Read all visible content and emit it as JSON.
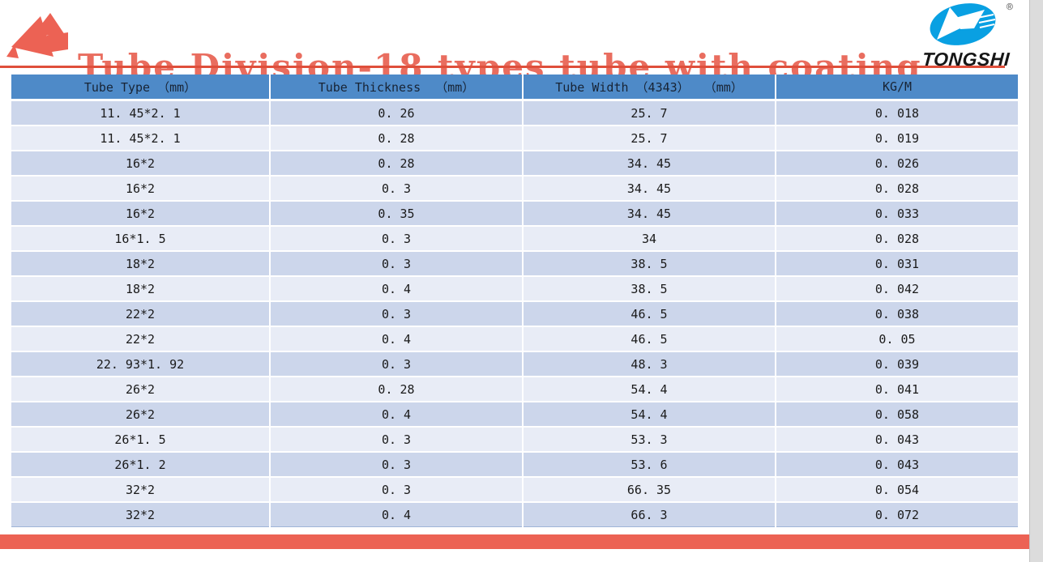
{
  "theme": {
    "accent": "#EC6254",
    "title_color": "#E96D5F",
    "underline_color": "#DF4F3B",
    "header_bg": "#4E8AC8",
    "header_text": "#182435",
    "row_dark": "#CCD6EB",
    "row_light": "#E8ECF6",
    "cell_text": "#1A1A1A",
    "logo_blue": "#09A0E2",
    "brand_text": "#161616",
    "page_edge": "#DCDCDC",
    "table_bottom_line": "#9FB4D8"
  },
  "header": {
    "title": "Tube Division-18 types tube with coating"
  },
  "logo": {
    "brand": "TONGSHI",
    "registered_mark": "®"
  },
  "table": {
    "columns": [
      "Tube Type （mm）",
      "Tube Thickness  （mm）",
      "Tube Width （4343）  （mm）",
      "KG/M"
    ],
    "rows": [
      [
        "11. 45*2. 1",
        "0. 26",
        "25. 7",
        "0. 018"
      ],
      [
        "11. 45*2. 1",
        "0. 28",
        "25. 7",
        "0. 019"
      ],
      [
        "16*2",
        "0. 28",
        "34. 45",
        "0. 026"
      ],
      [
        "16*2",
        "0. 3",
        "34. 45",
        "0. 028"
      ],
      [
        "16*2",
        "0. 35",
        "34. 45",
        "0. 033"
      ],
      [
        "16*1. 5",
        "0. 3",
        "34",
        "0. 028"
      ],
      [
        "18*2",
        "0. 3",
        "38. 5",
        "0. 031"
      ],
      [
        "18*2",
        "0. 4",
        "38. 5",
        "0. 042"
      ],
      [
        "22*2",
        "0. 3",
        "46. 5",
        "0. 038"
      ],
      [
        "22*2",
        "0. 4",
        "46. 5",
        "0. 05"
      ],
      [
        "22. 93*1. 92",
        "0. 3",
        "48. 3",
        "0. 039"
      ],
      [
        "26*2",
        "0. 28",
        "54. 4",
        "0. 041"
      ],
      [
        "26*2",
        "0. 4",
        "54. 4",
        "0. 058"
      ],
      [
        "26*1. 5",
        "0. 3",
        "53. 3",
        "0. 043"
      ],
      [
        "26*1. 2",
        "0. 3",
        "53. 6",
        "0. 043"
      ],
      [
        "32*2",
        "0. 3",
        "66. 35",
        "0. 054"
      ],
      [
        "32*2",
        "0. 4",
        "66. 3",
        "0. 072"
      ]
    ]
  }
}
